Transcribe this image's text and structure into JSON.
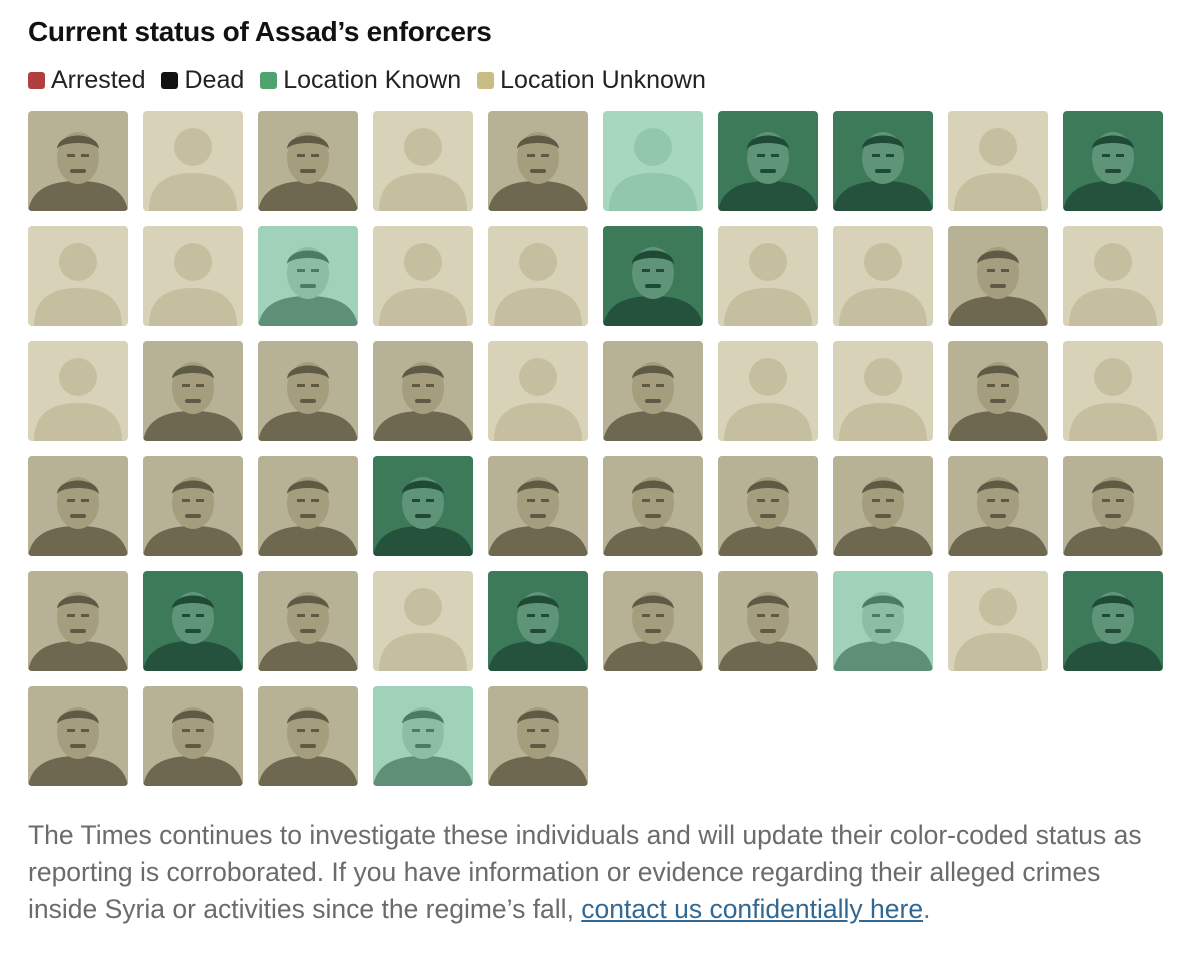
{
  "title": "Current status of Assad’s enforcers",
  "legend": [
    {
      "label": "Arrested",
      "color": "#b0403f"
    },
    {
      "label": "Dead",
      "color": "#111111"
    },
    {
      "label": "Location Known",
      "color": "#4fa36f"
    },
    {
      "label": "Location Unknown",
      "color": "#c9bd85"
    }
  ],
  "tile_colors": {
    "unknown_bg": "#d8d2b8",
    "unknown_silhouette": "#c6bf9f",
    "unknown_photo_tint": "#8f8a6c",
    "known_light_bg": "#a7d8bf",
    "known_light_silhouette": "#92c7ad",
    "known_dark_tint": "#2f6b4e"
  },
  "rows": [
    [
      "unknown-photo",
      "unknown-placeholder",
      "unknown-photo",
      "unknown-placeholder",
      "unknown-photo",
      "known-placeholder",
      "known-dark-photo",
      "known-dark-photo",
      "unknown-placeholder",
      "known-dark-photo"
    ],
    [
      "unknown-placeholder",
      "unknown-placeholder",
      "known-light-photo",
      "unknown-placeholder",
      "unknown-placeholder",
      "known-dark-photo",
      "unknown-placeholder",
      "unknown-placeholder",
      "unknown-photo",
      "unknown-placeholder"
    ],
    [
      "unknown-placeholder",
      "unknown-photo",
      "unknown-photo",
      "unknown-photo",
      "unknown-placeholder",
      "unknown-photo",
      "unknown-placeholder",
      "unknown-placeholder",
      "unknown-photo",
      "unknown-placeholder"
    ],
    [
      "unknown-photo",
      "unknown-photo",
      "unknown-photo",
      "known-dark-photo",
      "unknown-photo",
      "unknown-photo",
      "unknown-photo",
      "unknown-photo",
      "unknown-photo",
      "unknown-photo"
    ],
    [
      "unknown-photo",
      "known-dark-photo",
      "unknown-photo",
      "unknown-placeholder",
      "known-dark-photo",
      "unknown-photo",
      "unknown-photo",
      "known-light-photo",
      "unknown-placeholder",
      "known-dark-photo"
    ],
    [
      "unknown-photo",
      "unknown-photo",
      "unknown-photo",
      "known-light-photo",
      "unknown-photo"
    ]
  ],
  "footnote": {
    "text": "The Times continues to investigate these individuals and will update their color-coded status as reporting is corroborated. If you have information or evidence regarding their alleged crimes inside Syria or activities since the regime’s fall, ",
    "link_text": "contact us confidentially here",
    "end": "."
  }
}
